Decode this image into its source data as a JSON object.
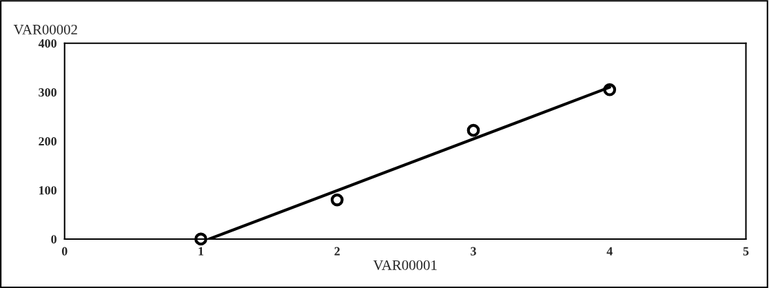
{
  "chart_data": {
    "type": "scatter",
    "xlabel": "VAR00001",
    "ylabel": "VAR00002",
    "xlim": [
      0,
      5
    ],
    "xticks": [
      0,
      1,
      2,
      3,
      4,
      5
    ],
    "ylim": [
      0,
      400
    ],
    "yticks": [
      0,
      100,
      200,
      300,
      400
    ],
    "grid": false,
    "legend": false,
    "marker": "circle",
    "series": [
      {
        "color": "#000000",
        "x": [
          1,
          2,
          3,
          4
        ],
        "values": [
          0,
          80,
          222,
          305
        ]
      },
      {
        "type": "line",
        "color": "#000000",
        "line_style": "solid",
        "marker": "none",
        "x": [
          1.06,
          4
        ],
        "values": [
          0,
          310
        ]
      }
    ]
  }
}
